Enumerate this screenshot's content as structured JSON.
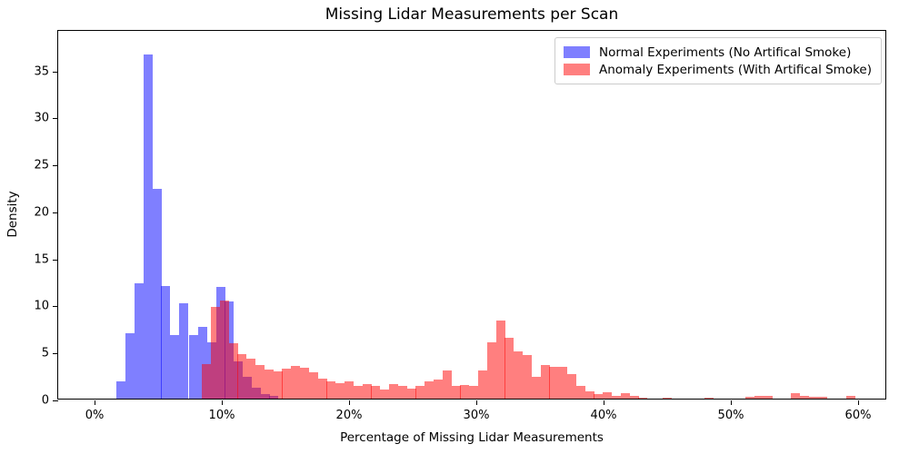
{
  "chart_data": {
    "type": "bar",
    "subtype": "overlapping-density-histogram",
    "title": "Missing Lidar Measurements per Scan",
    "xlabel": "Percentage of Missing Lidar Measurements",
    "ylabel": "Density",
    "x_tick_labels": [
      "0%",
      "10%",
      "20%",
      "30%",
      "40%",
      "50%",
      "60%"
    ],
    "x_tick_values": [
      0,
      10,
      20,
      30,
      40,
      50,
      60
    ],
    "y_tick_labels": [
      "0",
      "5",
      "10",
      "15",
      "20",
      "25",
      "30",
      "35"
    ],
    "y_tick_values": [
      0,
      5,
      10,
      15,
      20,
      25,
      30,
      35
    ],
    "xlim": [
      -2.9,
      62.3
    ],
    "ylim": [
      0,
      39.3
    ],
    "grid": false,
    "legend_position": "top-right",
    "bin_width_pct": 0.714,
    "series": [
      {
        "name": "Normal Experiments (No Artifical Smoke)",
        "color": "#0000ff",
        "fill": "rgba(0,0,255,0.5)",
        "bins": [
          [
            2.1,
            1.8
          ],
          [
            2.8,
            7.0
          ],
          [
            3.5,
            12.3
          ],
          [
            4.2,
            36.6
          ],
          [
            4.9,
            22.3
          ],
          [
            5.6,
            12.0
          ],
          [
            6.3,
            6.8
          ],
          [
            7.0,
            10.1
          ],
          [
            7.8,
            6.8
          ],
          [
            8.5,
            7.6
          ],
          [
            9.2,
            6.0
          ],
          [
            9.9,
            11.9
          ],
          [
            10.6,
            10.3
          ],
          [
            11.3,
            4.0
          ],
          [
            12.0,
            2.3
          ],
          [
            12.7,
            1.2
          ],
          [
            13.4,
            0.5
          ],
          [
            14.1,
            0.25
          ]
        ]
      },
      {
        "name": "Anomaly Experiments (With Artifical Smoke)",
        "color": "#ff0000",
        "fill": "rgba(255,0,0,0.5)",
        "bins": [
          [
            8.8,
            3.7
          ],
          [
            9.5,
            9.8
          ],
          [
            10.2,
            10.4
          ],
          [
            10.9,
            5.9
          ],
          [
            11.6,
            4.7
          ],
          [
            12.3,
            4.3
          ],
          [
            13.0,
            3.6
          ],
          [
            13.7,
            3.1
          ],
          [
            14.4,
            2.9
          ],
          [
            15.1,
            3.2
          ],
          [
            15.8,
            3.5
          ],
          [
            16.5,
            3.3
          ],
          [
            17.2,
            2.8
          ],
          [
            17.9,
            2.1
          ],
          [
            18.6,
            1.8
          ],
          [
            19.3,
            1.6
          ],
          [
            20.0,
            1.8
          ],
          [
            20.7,
            1.35
          ],
          [
            21.4,
            1.55
          ],
          [
            22.1,
            1.35
          ],
          [
            22.8,
            0.95
          ],
          [
            23.5,
            1.55
          ],
          [
            24.2,
            1.35
          ],
          [
            24.9,
            1.1
          ],
          [
            25.6,
            1.35
          ],
          [
            26.3,
            1.8
          ],
          [
            27.0,
            2.0
          ],
          [
            27.7,
            3.0
          ],
          [
            28.4,
            1.35
          ],
          [
            29.1,
            1.45
          ],
          [
            29.8,
            1.4
          ],
          [
            30.5,
            3.0
          ],
          [
            31.2,
            6.0
          ],
          [
            31.9,
            8.3
          ],
          [
            32.6,
            6.5
          ],
          [
            33.3,
            5.0
          ],
          [
            34.0,
            4.6
          ],
          [
            34.7,
            2.3
          ],
          [
            35.4,
            3.6
          ],
          [
            36.1,
            3.4
          ],
          [
            36.8,
            3.4
          ],
          [
            37.5,
            2.6
          ],
          [
            38.2,
            1.4
          ],
          [
            38.9,
            0.8
          ],
          [
            39.6,
            0.5
          ],
          [
            40.3,
            0.7
          ],
          [
            41.0,
            0.3
          ],
          [
            41.7,
            0.6
          ],
          [
            42.4,
            0.25
          ],
          [
            43.1,
            0.1
          ],
          [
            45.0,
            0.13
          ],
          [
            48.3,
            0.1
          ],
          [
            51.5,
            0.16
          ],
          [
            52.2,
            0.25
          ],
          [
            52.9,
            0.25
          ],
          [
            55.1,
            0.55
          ],
          [
            55.8,
            0.3
          ],
          [
            56.5,
            0.16
          ],
          [
            57.2,
            0.2
          ],
          [
            59.4,
            0.25
          ]
        ]
      }
    ],
    "overlap_color_hint": "#BF4080"
  }
}
